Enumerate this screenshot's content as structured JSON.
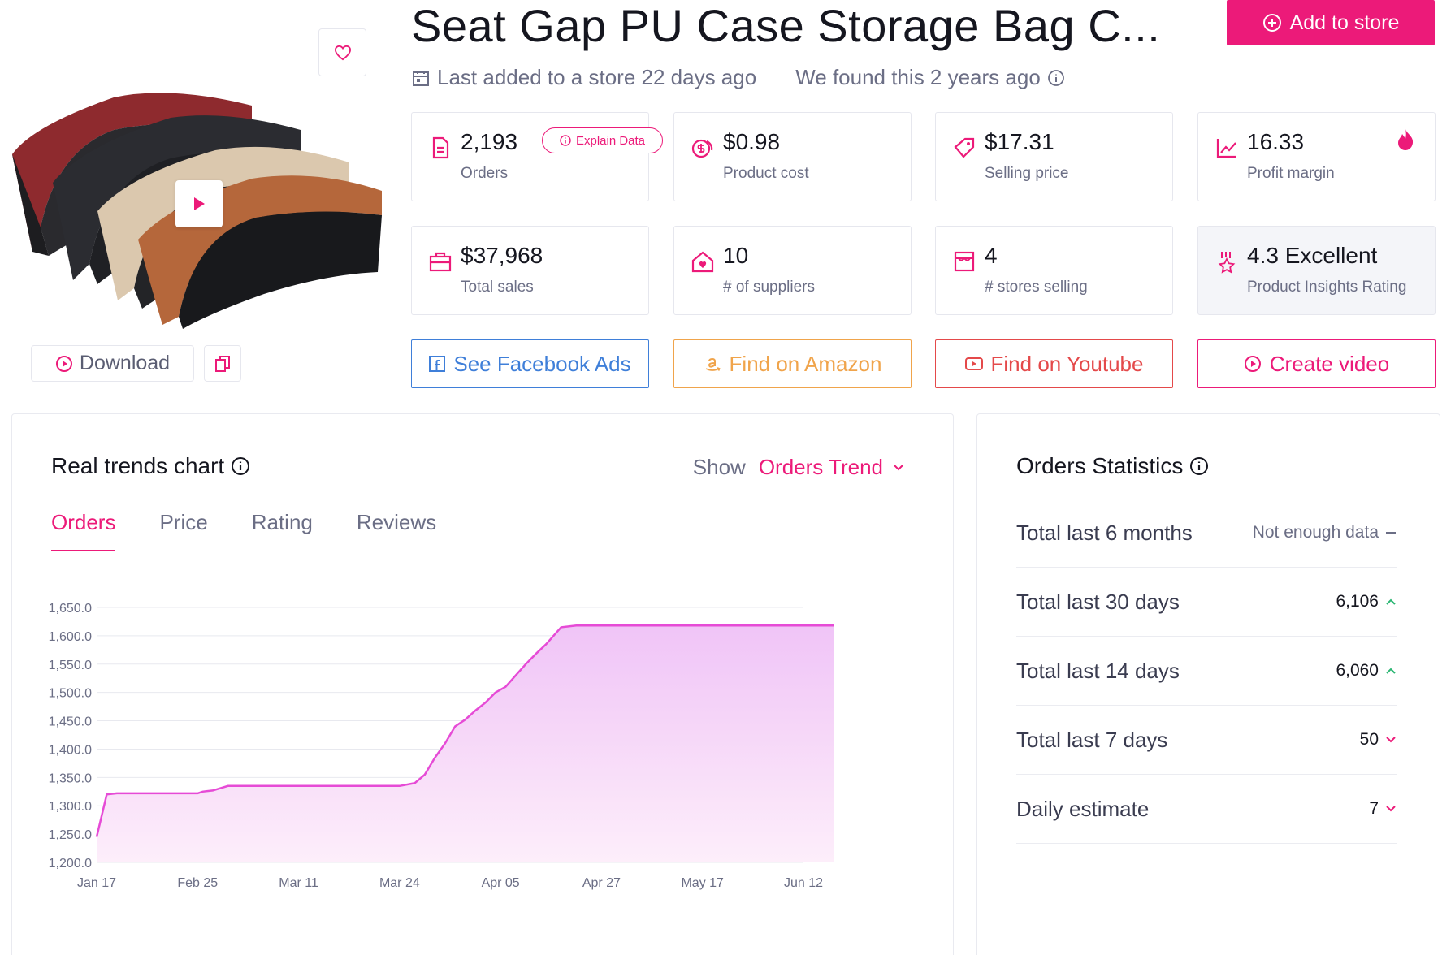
{
  "product": {
    "title": "Seat Gap PU Case Storage Bag C...",
    "last_added": "Last added to a store 22 days ago",
    "found": "We found this 2 years ago",
    "add_to_store": "Add to store",
    "download": "Download"
  },
  "stats": {
    "orders": {
      "value": "2,193",
      "label": "Orders",
      "explain": "Explain Data"
    },
    "product_cost": {
      "value": "$0.98",
      "label": "Product cost"
    },
    "selling_price": {
      "value": "$17.31",
      "label": "Selling price"
    },
    "profit_margin": {
      "value": "16.33",
      "label": "Profit margin"
    },
    "total_sales": {
      "value": "$37,968",
      "label": "Total sales"
    },
    "suppliers": {
      "value": "10",
      "label": "# of suppliers"
    },
    "stores_selling": {
      "value": "4",
      "label": "# stores selling"
    },
    "rating": {
      "value": "4.3 Excellent",
      "label": "Product Insights Rating"
    }
  },
  "actions": {
    "facebook": "See Facebook Ads",
    "amazon": "Find on Amazon",
    "youtube": "Find on Youtube",
    "create_video": "Create video"
  },
  "trends": {
    "title": "Real trends chart",
    "show_label": "Show",
    "show_value": "Orders Trend",
    "tabs": [
      "Orders",
      "Price",
      "Rating",
      "Reviews"
    ]
  },
  "chart_data": {
    "type": "area",
    "title": "",
    "xlabel": "",
    "ylabel": "",
    "ylim": [
      1200,
      1650
    ],
    "y_ticks": [
      "1,650.0",
      "1,600.0",
      "1,550.0",
      "1,500.0",
      "1,450.0",
      "1,400.0",
      "1,350.0",
      "1,300.0",
      "1,250.0",
      "1,200.0"
    ],
    "x_ticks": [
      "Jan 17",
      "Feb 25",
      "Mar 11",
      "Mar 24",
      "Apr 05",
      "Apr 27",
      "May 17",
      "Jun 12"
    ],
    "grid": true,
    "color": "#e64bd6",
    "series": [
      {
        "x": [
          0.0,
          0.1,
          0.2,
          0.5,
          0.9,
          1.0,
          1.05,
          1.15,
          1.3,
          1.45,
          1.55,
          1.7,
          2.5,
          3.0,
          3.15,
          3.25,
          3.35,
          3.45,
          3.55,
          3.65,
          3.75,
          3.85,
          3.95,
          4.05,
          4.15,
          4.25,
          4.35,
          4.45,
          4.6,
          4.75,
          5.0,
          6.0,
          7.3
        ],
        "y": [
          1245,
          1320,
          1322,
          1322,
          1322,
          1322,
          1325,
          1327,
          1335,
          1335,
          1335,
          1335,
          1335,
          1335,
          1340,
          1355,
          1385,
          1410,
          1440,
          1452,
          1468,
          1482,
          1500,
          1510,
          1530,
          1550,
          1568,
          1585,
          1615,
          1618,
          1618,
          1618,
          1618
        ]
      }
    ]
  },
  "orders_statistics": {
    "title": "Orders Statistics",
    "rows": [
      {
        "label": "Total last 6 months",
        "value": "Not enough data",
        "trend": "none"
      },
      {
        "label": "Total last 30 days",
        "value": "6,106",
        "trend": "up"
      },
      {
        "label": "Total last 14 days",
        "value": "6,060",
        "trend": "up"
      },
      {
        "label": "Total last 7 days",
        "value": "50",
        "trend": "down"
      },
      {
        "label": "Daily estimate",
        "value": "7",
        "trend": "down"
      }
    ]
  },
  "colors": {
    "accent": "#ec1a79",
    "facebook": "#3f7fd9",
    "amazon": "#f0a44b",
    "youtube": "#e4494a",
    "up": "#2bb673",
    "down": "#ec1a79"
  }
}
